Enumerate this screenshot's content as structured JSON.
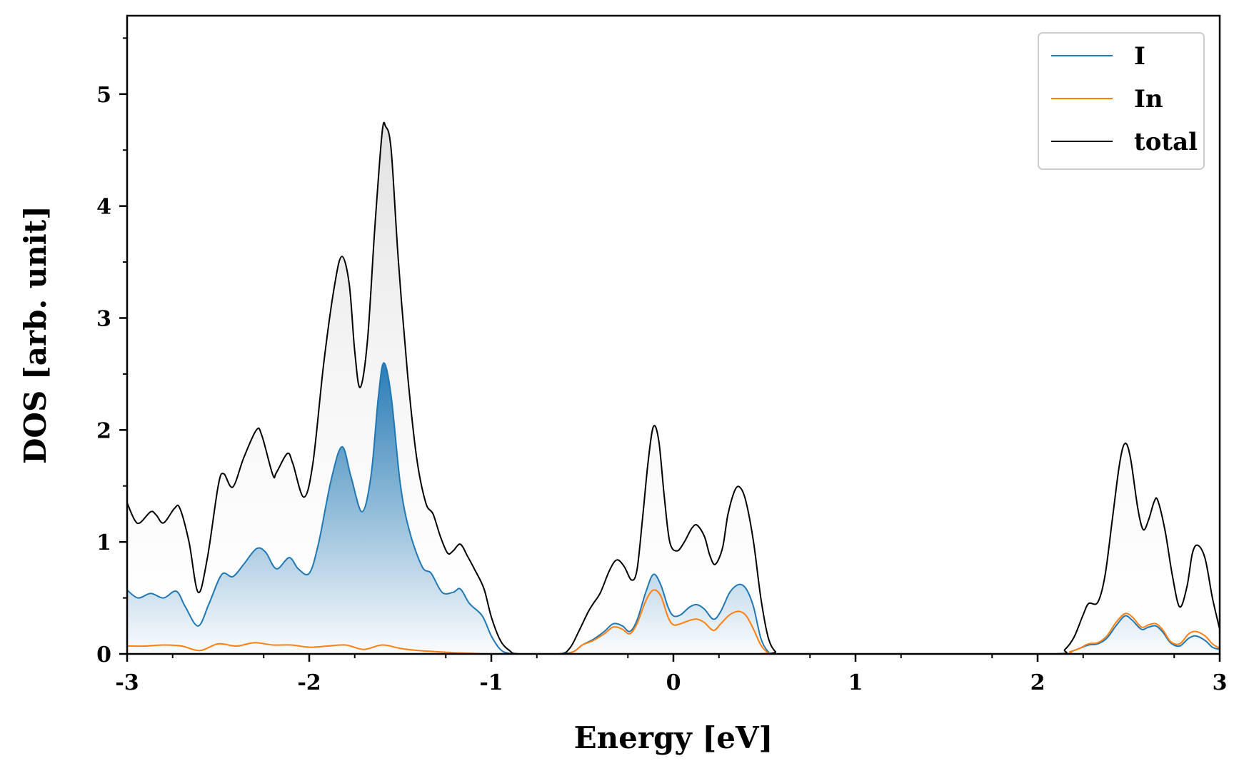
{
  "chart_data": {
    "type": "line",
    "xlabel": "Energy [eV]",
    "ylabel": "DOS [arb. unit]",
    "xlim": [
      -3,
      3
    ],
    "ylim": [
      0,
      5.7
    ],
    "xticks": [
      -3,
      -2,
      -1,
      0,
      1,
      2,
      3
    ],
    "xtick_labels": [
      "-3",
      "-2",
      "-1",
      "0",
      "1",
      "2",
      "3"
    ],
    "yticks": [
      0,
      1,
      2,
      3,
      4,
      5
    ],
    "ytick_labels": [
      "0",
      "1",
      "2",
      "3",
      "4",
      "5"
    ],
    "grid": false,
    "legend_position": "top-right",
    "series": [
      {
        "name": "I",
        "color": "#1f77b4",
        "filled": true,
        "points": [
          [
            -3.0,
            0.57
          ],
          [
            -2.94,
            0.5
          ],
          [
            -2.87,
            0.54
          ],
          [
            -2.8,
            0.5
          ],
          [
            -2.73,
            0.56
          ],
          [
            -2.68,
            0.42
          ],
          [
            -2.61,
            0.25
          ],
          [
            -2.55,
            0.45
          ],
          [
            -2.48,
            0.71
          ],
          [
            -2.42,
            0.69
          ],
          [
            -2.36,
            0.8
          ],
          [
            -2.29,
            0.94
          ],
          [
            -2.24,
            0.91
          ],
          [
            -2.18,
            0.76
          ],
          [
            -2.11,
            0.86
          ],
          [
            -2.06,
            0.76
          ],
          [
            -2.0,
            0.72
          ],
          [
            -1.95,
            0.98
          ],
          [
            -1.88,
            1.55
          ],
          [
            -1.82,
            1.85
          ],
          [
            -1.77,
            1.58
          ],
          [
            -1.71,
            1.27
          ],
          [
            -1.66,
            1.6
          ],
          [
            -1.62,
            2.3
          ],
          [
            -1.59,
            2.6
          ],
          [
            -1.55,
            2.3
          ],
          [
            -1.5,
            1.52
          ],
          [
            -1.45,
            1.1
          ],
          [
            -1.38,
            0.78
          ],
          [
            -1.33,
            0.72
          ],
          [
            -1.27,
            0.55
          ],
          [
            -1.21,
            0.55
          ],
          [
            -1.17,
            0.58
          ],
          [
            -1.12,
            0.45
          ],
          [
            -1.05,
            0.34
          ],
          [
            -1.0,
            0.16
          ],
          [
            -0.95,
            0.04
          ],
          [
            -0.9,
            0.005
          ],
          [
            -0.8,
            0.0
          ],
          [
            -0.63,
            0.0
          ],
          [
            -0.55,
            0.02
          ],
          [
            -0.5,
            0.08
          ],
          [
            -0.44,
            0.13
          ],
          [
            -0.38,
            0.2
          ],
          [
            -0.33,
            0.27
          ],
          [
            -0.28,
            0.25
          ],
          [
            -0.24,
            0.2
          ],
          [
            -0.2,
            0.3
          ],
          [
            -0.15,
            0.56
          ],
          [
            -0.11,
            0.71
          ],
          [
            -0.07,
            0.62
          ],
          [
            -0.03,
            0.42
          ],
          [
            0.0,
            0.34
          ],
          [
            0.04,
            0.35
          ],
          [
            0.09,
            0.42
          ],
          [
            0.13,
            0.44
          ],
          [
            0.17,
            0.4
          ],
          [
            0.22,
            0.31
          ],
          [
            0.26,
            0.38
          ],
          [
            0.31,
            0.55
          ],
          [
            0.36,
            0.62
          ],
          [
            0.4,
            0.58
          ],
          [
            0.44,
            0.42
          ],
          [
            0.48,
            0.14
          ],
          [
            0.52,
            0.02
          ],
          [
            0.56,
            0.0
          ],
          [
            0.9,
            0.0
          ],
          [
            1.5,
            0.0
          ],
          [
            2.12,
            0.0
          ],
          [
            2.18,
            0.02
          ],
          [
            2.23,
            0.05
          ],
          [
            2.28,
            0.08
          ],
          [
            2.33,
            0.09
          ],
          [
            2.38,
            0.14
          ],
          [
            2.43,
            0.25
          ],
          [
            2.48,
            0.34
          ],
          [
            2.52,
            0.3
          ],
          [
            2.57,
            0.22
          ],
          [
            2.61,
            0.24
          ],
          [
            2.65,
            0.25
          ],
          [
            2.69,
            0.19
          ],
          [
            2.73,
            0.1
          ],
          [
            2.78,
            0.07
          ],
          [
            2.83,
            0.14
          ],
          [
            2.87,
            0.16
          ],
          [
            2.92,
            0.12
          ],
          [
            2.96,
            0.06
          ],
          [
            3.0,
            0.04
          ]
        ]
      },
      {
        "name": "In",
        "color": "#ff7f0e",
        "filled": false,
        "points": [
          [
            -3.0,
            0.07
          ],
          [
            -2.9,
            0.07
          ],
          [
            -2.8,
            0.08
          ],
          [
            -2.7,
            0.07
          ],
          [
            -2.6,
            0.03
          ],
          [
            -2.5,
            0.09
          ],
          [
            -2.4,
            0.07
          ],
          [
            -2.3,
            0.1
          ],
          [
            -2.2,
            0.08
          ],
          [
            -2.1,
            0.08
          ],
          [
            -2.0,
            0.06
          ],
          [
            -1.9,
            0.07
          ],
          [
            -1.8,
            0.08
          ],
          [
            -1.7,
            0.04
          ],
          [
            -1.6,
            0.08
          ],
          [
            -1.5,
            0.05
          ],
          [
            -1.4,
            0.03
          ],
          [
            -1.3,
            0.02
          ],
          [
            -1.2,
            0.01
          ],
          [
            -1.1,
            0.005
          ],
          [
            -1.0,
            0.0
          ],
          [
            -0.63,
            0.0
          ],
          [
            -0.55,
            0.02
          ],
          [
            -0.5,
            0.08
          ],
          [
            -0.44,
            0.12
          ],
          [
            -0.38,
            0.18
          ],
          [
            -0.33,
            0.24
          ],
          [
            -0.28,
            0.22
          ],
          [
            -0.24,
            0.18
          ],
          [
            -0.2,
            0.27
          ],
          [
            -0.15,
            0.48
          ],
          [
            -0.11,
            0.57
          ],
          [
            -0.07,
            0.52
          ],
          [
            -0.03,
            0.33
          ],
          [
            0.0,
            0.26
          ],
          [
            0.04,
            0.27
          ],
          [
            0.09,
            0.3
          ],
          [
            0.13,
            0.31
          ],
          [
            0.17,
            0.28
          ],
          [
            0.22,
            0.21
          ],
          [
            0.26,
            0.27
          ],
          [
            0.31,
            0.35
          ],
          [
            0.36,
            0.38
          ],
          [
            0.4,
            0.34
          ],
          [
            0.44,
            0.22
          ],
          [
            0.48,
            0.08
          ],
          [
            0.52,
            0.01
          ],
          [
            0.56,
            0.0
          ],
          [
            1.5,
            0.0
          ],
          [
            2.12,
            0.0
          ],
          [
            2.18,
            0.02
          ],
          [
            2.23,
            0.05
          ],
          [
            2.28,
            0.09
          ],
          [
            2.33,
            0.1
          ],
          [
            2.38,
            0.16
          ],
          [
            2.43,
            0.28
          ],
          [
            2.48,
            0.36
          ],
          [
            2.52,
            0.33
          ],
          [
            2.57,
            0.24
          ],
          [
            2.61,
            0.26
          ],
          [
            2.65,
            0.27
          ],
          [
            2.69,
            0.21
          ],
          [
            2.73,
            0.11
          ],
          [
            2.78,
            0.09
          ],
          [
            2.83,
            0.18
          ],
          [
            2.87,
            0.2
          ],
          [
            2.92,
            0.16
          ],
          [
            2.96,
            0.09
          ],
          [
            3.0,
            0.05
          ]
        ]
      },
      {
        "name": "total",
        "color": "#000000",
        "filled": true,
        "points": [
          [
            -3.0,
            1.35
          ],
          [
            -2.96,
            1.2
          ],
          [
            -2.93,
            1.17
          ],
          [
            -2.87,
            1.27
          ],
          [
            -2.84,
            1.24
          ],
          [
            -2.8,
            1.17
          ],
          [
            -2.74,
            1.3
          ],
          [
            -2.71,
            1.3
          ],
          [
            -2.66,
            1.0
          ],
          [
            -2.61,
            0.55
          ],
          [
            -2.56,
            0.85
          ],
          [
            -2.5,
            1.5
          ],
          [
            -2.47,
            1.61
          ],
          [
            -2.42,
            1.49
          ],
          [
            -2.36,
            1.75
          ],
          [
            -2.29,
            2.0
          ],
          [
            -2.26,
            1.95
          ],
          [
            -2.2,
            1.6
          ],
          [
            -2.18,
            1.62
          ],
          [
            -2.12,
            1.79
          ],
          [
            -2.09,
            1.7
          ],
          [
            -2.03,
            1.4
          ],
          [
            -1.98,
            1.7
          ],
          [
            -1.92,
            2.6
          ],
          [
            -1.86,
            3.3
          ],
          [
            -1.82,
            3.55
          ],
          [
            -1.78,
            3.3
          ],
          [
            -1.75,
            2.7
          ],
          [
            -1.72,
            2.38
          ],
          [
            -1.68,
            2.8
          ],
          [
            -1.64,
            3.8
          ],
          [
            -1.6,
            4.65
          ],
          [
            -1.58,
            4.71
          ],
          [
            -1.55,
            4.5
          ],
          [
            -1.51,
            3.5
          ],
          [
            -1.46,
            2.5
          ],
          [
            -1.41,
            1.75
          ],
          [
            -1.36,
            1.35
          ],
          [
            -1.32,
            1.25
          ],
          [
            -1.28,
            1.05
          ],
          [
            -1.24,
            0.9
          ],
          [
            -1.21,
            0.92
          ],
          [
            -1.17,
            0.98
          ],
          [
            -1.13,
            0.87
          ],
          [
            -1.09,
            0.75
          ],
          [
            -1.04,
            0.58
          ],
          [
            -1.0,
            0.33
          ],
          [
            -0.95,
            0.12
          ],
          [
            -0.9,
            0.03
          ],
          [
            -0.85,
            0.0
          ],
          [
            -0.63,
            0.0
          ],
          [
            -0.57,
            0.05
          ],
          [
            -0.52,
            0.2
          ],
          [
            -0.47,
            0.37
          ],
          [
            -0.44,
            0.45
          ],
          [
            -0.4,
            0.55
          ],
          [
            -0.35,
            0.75
          ],
          [
            -0.31,
            0.84
          ],
          [
            -0.27,
            0.78
          ],
          [
            -0.23,
            0.66
          ],
          [
            -0.2,
            0.75
          ],
          [
            -0.17,
            1.2
          ],
          [
            -0.14,
            1.7
          ],
          [
            -0.11,
            2.03
          ],
          [
            -0.08,
            1.9
          ],
          [
            -0.05,
            1.4
          ],
          [
            -0.02,
            1.0
          ],
          [
            0.02,
            0.92
          ],
          [
            0.06,
            1.0
          ],
          [
            0.1,
            1.12
          ],
          [
            0.13,
            1.15
          ],
          [
            0.17,
            1.05
          ],
          [
            0.2,
            0.88
          ],
          [
            0.23,
            0.8
          ],
          [
            0.27,
            0.95
          ],
          [
            0.3,
            1.25
          ],
          [
            0.34,
            1.47
          ],
          [
            0.37,
            1.48
          ],
          [
            0.4,
            1.35
          ],
          [
            0.44,
            1.0
          ],
          [
            0.48,
            0.5
          ],
          [
            0.52,
            0.15
          ],
          [
            0.56,
            0.02
          ],
          [
            0.6,
            0.0
          ],
          [
            1.5,
            0.0
          ],
          [
            2.1,
            0.0
          ],
          [
            2.15,
            0.04
          ],
          [
            2.2,
            0.15
          ],
          [
            2.25,
            0.35
          ],
          [
            2.28,
            0.45
          ],
          [
            2.33,
            0.46
          ],
          [
            2.37,
            0.7
          ],
          [
            2.41,
            1.2
          ],
          [
            2.45,
            1.7
          ],
          [
            2.48,
            1.88
          ],
          [
            2.51,
            1.75
          ],
          [
            2.55,
            1.3
          ],
          [
            2.58,
            1.11
          ],
          [
            2.61,
            1.2
          ],
          [
            2.64,
            1.36
          ],
          [
            2.66,
            1.37
          ],
          [
            2.7,
            1.1
          ],
          [
            2.74,
            0.7
          ],
          [
            2.78,
            0.42
          ],
          [
            2.82,
            0.6
          ],
          [
            2.85,
            0.9
          ],
          [
            2.88,
            0.97
          ],
          [
            2.92,
            0.85
          ],
          [
            2.96,
            0.5
          ],
          [
            3.0,
            0.22
          ]
        ]
      }
    ]
  }
}
